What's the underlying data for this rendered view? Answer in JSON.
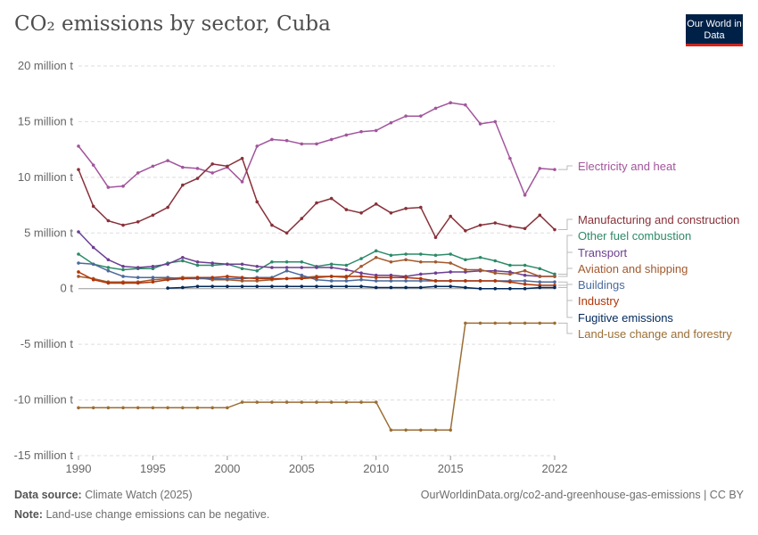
{
  "header": {
    "title": "CO₂ emissions by sector, Cuba",
    "logo": "Our World in Data"
  },
  "footer": {
    "source_label": "Data source:",
    "source": "Climate Watch (2025)",
    "url": "OurWorldinData.org/co2-and-greenhouse-gas-emissions | CC BY",
    "note_label": "Note:",
    "note": "Land-use change emissions can be negative."
  },
  "chart_data": {
    "type": "line",
    "title": "CO₂ emissions by sector, Cuba",
    "xlabel": "",
    "ylabel": "",
    "xlim": [
      1990,
      2022
    ],
    "ylim": [
      -15,
      20
    ],
    "x_ticks": [
      1990,
      1995,
      2000,
      2005,
      2010,
      2015,
      2022
    ],
    "y_ticks": [
      {
        "v": 20,
        "label": "20 million t"
      },
      {
        "v": 15,
        "label": "15 million t"
      },
      {
        "v": 10,
        "label": "10 million t"
      },
      {
        "v": 5,
        "label": "5 million t"
      },
      {
        "v": 0,
        "label": "0 t"
      },
      {
        "v": -5,
        "label": "-5 million t"
      },
      {
        "v": -10,
        "label": "-10 million t"
      },
      {
        "v": -15,
        "label": "-15 million t"
      }
    ],
    "grid": "horizontal dashed",
    "legend": "right, line-end labels",
    "unit": "million t",
    "years": [
      1990,
      1991,
      1992,
      1993,
      1994,
      1995,
      1996,
      1997,
      1998,
      1999,
      2000,
      2001,
      2002,
      2003,
      2004,
      2005,
      2006,
      2007,
      2008,
      2009,
      2010,
      2011,
      2012,
      2013,
      2014,
      2015,
      2016,
      2017,
      2018,
      2019,
      2020,
      2021,
      2022
    ],
    "series": [
      {
        "name": "Electricity and heat",
        "color": "#a2559c",
        "values": [
          12.8,
          11.1,
          9.1,
          9.2,
          10.4,
          11.0,
          11.5,
          10.9,
          10.8,
          10.4,
          10.9,
          9.6,
          12.8,
          13.4,
          13.3,
          13.0,
          13.0,
          13.4,
          13.8,
          14.1,
          14.2,
          14.9,
          15.5,
          15.5,
          16.2,
          16.7,
          16.5,
          14.8,
          15.0,
          11.7,
          8.4,
          10.8,
          10.7
        ]
      },
      {
        "name": "Manufacturing and construction",
        "color": "#883039",
        "values": [
          10.7,
          7.4,
          6.1,
          5.7,
          6.0,
          6.6,
          7.3,
          9.3,
          9.9,
          11.2,
          11.0,
          11.7,
          7.8,
          5.7,
          5.0,
          6.3,
          7.7,
          8.1,
          7.1,
          6.8,
          7.6,
          6.8,
          7.2,
          7.3,
          4.6,
          6.5,
          5.2,
          5.7,
          5.9,
          5.6,
          5.4,
          6.6,
          5.3
        ]
      },
      {
        "name": "Other fuel combustion",
        "color": "#2c8a68",
        "values": [
          3.1,
          2.2,
          1.9,
          1.7,
          1.8,
          1.8,
          2.3,
          2.5,
          2.1,
          2.1,
          2.2,
          1.8,
          1.6,
          2.4,
          2.4,
          2.4,
          2.0,
          2.2,
          2.1,
          2.7,
          3.4,
          3.0,
          3.1,
          3.1,
          3.0,
          3.1,
          2.6,
          2.8,
          2.5,
          2.1,
          2.1,
          1.8,
          1.3
        ]
      },
      {
        "name": "Transport",
        "color": "#6d3e91",
        "values": [
          5.1,
          3.7,
          2.6,
          2.0,
          1.9,
          2.0,
          2.2,
          2.8,
          2.4,
          2.3,
          2.2,
          2.2,
          2.0,
          1.9,
          1.9,
          1.9,
          1.9,
          1.9,
          1.7,
          1.4,
          1.2,
          1.2,
          1.1,
          1.3,
          1.4,
          1.5,
          1.5,
          1.6,
          1.6,
          1.5,
          1.2,
          1.1,
          1.1
        ]
      },
      {
        "name": "Aviation and shipping",
        "color": "#a2592d",
        "values": [
          1.1,
          0.9,
          0.6,
          0.6,
          0.6,
          0.8,
          0.9,
          1.0,
          1.0,
          0.8,
          0.8,
          0.7,
          0.7,
          0.8,
          0.9,
          1.0,
          1.1,
          1.1,
          1.0,
          2.0,
          2.8,
          2.4,
          2.6,
          2.4,
          2.4,
          2.3,
          1.7,
          1.7,
          1.4,
          1.3,
          1.6,
          1.1,
          1.1
        ]
      },
      {
        "name": "Buildings",
        "color": "#4c6a9c",
        "values": [
          2.3,
          2.2,
          1.6,
          1.1,
          1.0,
          1.0,
          1.0,
          0.9,
          0.9,
          0.9,
          0.9,
          0.9,
          1.0,
          1.0,
          1.6,
          1.2,
          0.8,
          0.7,
          0.7,
          0.8,
          0.7,
          0.7,
          0.7,
          0.7,
          0.7,
          0.7,
          0.7,
          0.7,
          0.7,
          0.7,
          0.7,
          0.6,
          0.6
        ]
      },
      {
        "name": "Industry",
        "color": "#b13507",
        "values": [
          1.5,
          0.8,
          0.5,
          0.5,
          0.5,
          0.6,
          0.8,
          0.9,
          1.0,
          1.0,
          1.1,
          1.0,
          0.9,
          0.9,
          0.9,
          0.9,
          1.0,
          1.1,
          1.1,
          1.1,
          1.0,
          1.0,
          1.0,
          0.9,
          0.7,
          0.7,
          0.7,
          0.7,
          0.7,
          0.6,
          0.4,
          0.3,
          0.3
        ]
      },
      {
        "name": "Fugitive emissions",
        "color": "#00295b",
        "values": [
          null,
          null,
          null,
          null,
          null,
          null,
          0.05,
          0.1,
          0.2,
          0.2,
          0.2,
          0.2,
          0.2,
          0.2,
          0.2,
          0.2,
          0.2,
          0.2,
          0.2,
          0.2,
          0.1,
          0.1,
          0.1,
          0.1,
          0.2,
          0.2,
          0.1,
          0.0,
          0.0,
          0.0,
          0.0,
          0.1,
          0.1
        ]
      },
      {
        "name": "Land-use change and forestry",
        "color": "#9b6e35",
        "values": [
          -10.7,
          -10.7,
          -10.7,
          -10.7,
          -10.7,
          -10.7,
          -10.7,
          -10.7,
          -10.7,
          -10.7,
          -10.7,
          -10.2,
          -10.2,
          -10.2,
          -10.2,
          -10.2,
          -10.2,
          -10.2,
          -10.2,
          -10.2,
          -10.2,
          -12.7,
          -12.7,
          -12.7,
          -12.7,
          -12.7,
          -3.1,
          -3.1,
          -3.1,
          -3.1,
          -3.1,
          -3.1,
          -3.1
        ]
      }
    ]
  }
}
